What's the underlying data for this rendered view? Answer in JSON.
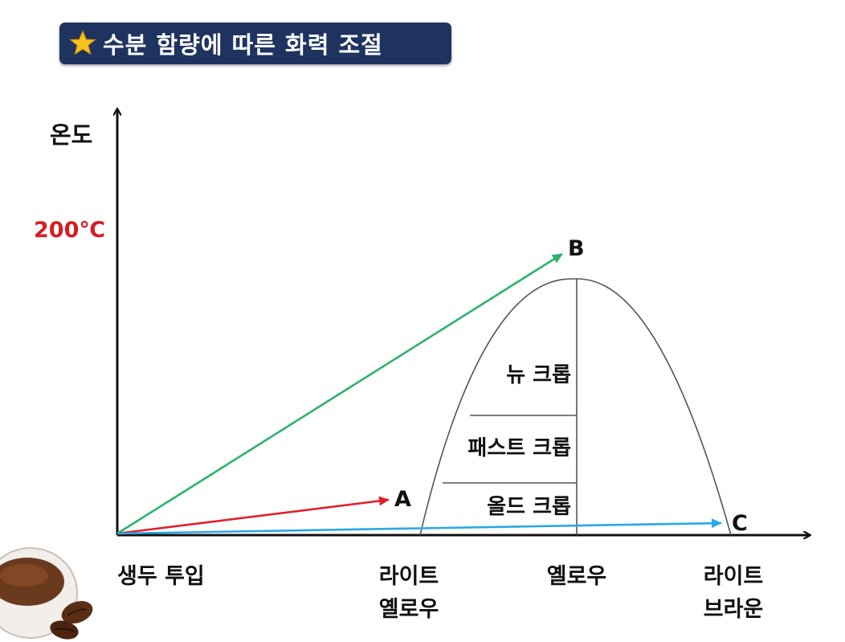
{
  "title": "수분 함량에 따른 화력 조절",
  "icons": {
    "title_icon": "star-icon",
    "decoration": "coffee-cup-icon"
  },
  "colors": {
    "banner": "#1f3360",
    "arrow_a": "#e0202a",
    "arrow_b": "#2bb36a",
    "arrow_c": "#2aa8e6",
    "temp_label": "#d21e26"
  },
  "axes": {
    "y_label": "온도",
    "y_mark": "200℃",
    "x_labels": [
      {
        "line1": "생두 투입",
        "line2": ""
      },
      {
        "line1": "라이트",
        "line2": "옐로우"
      },
      {
        "line1": "옐로우",
        "line2": ""
      },
      {
        "line1": "라이트",
        "line2": "브라운"
      }
    ]
  },
  "stages": [
    "뉴 크롭",
    "패스트 크롭",
    "올드 크롭"
  ],
  "points": {
    "a": "A",
    "b": "B",
    "c": "C"
  }
}
